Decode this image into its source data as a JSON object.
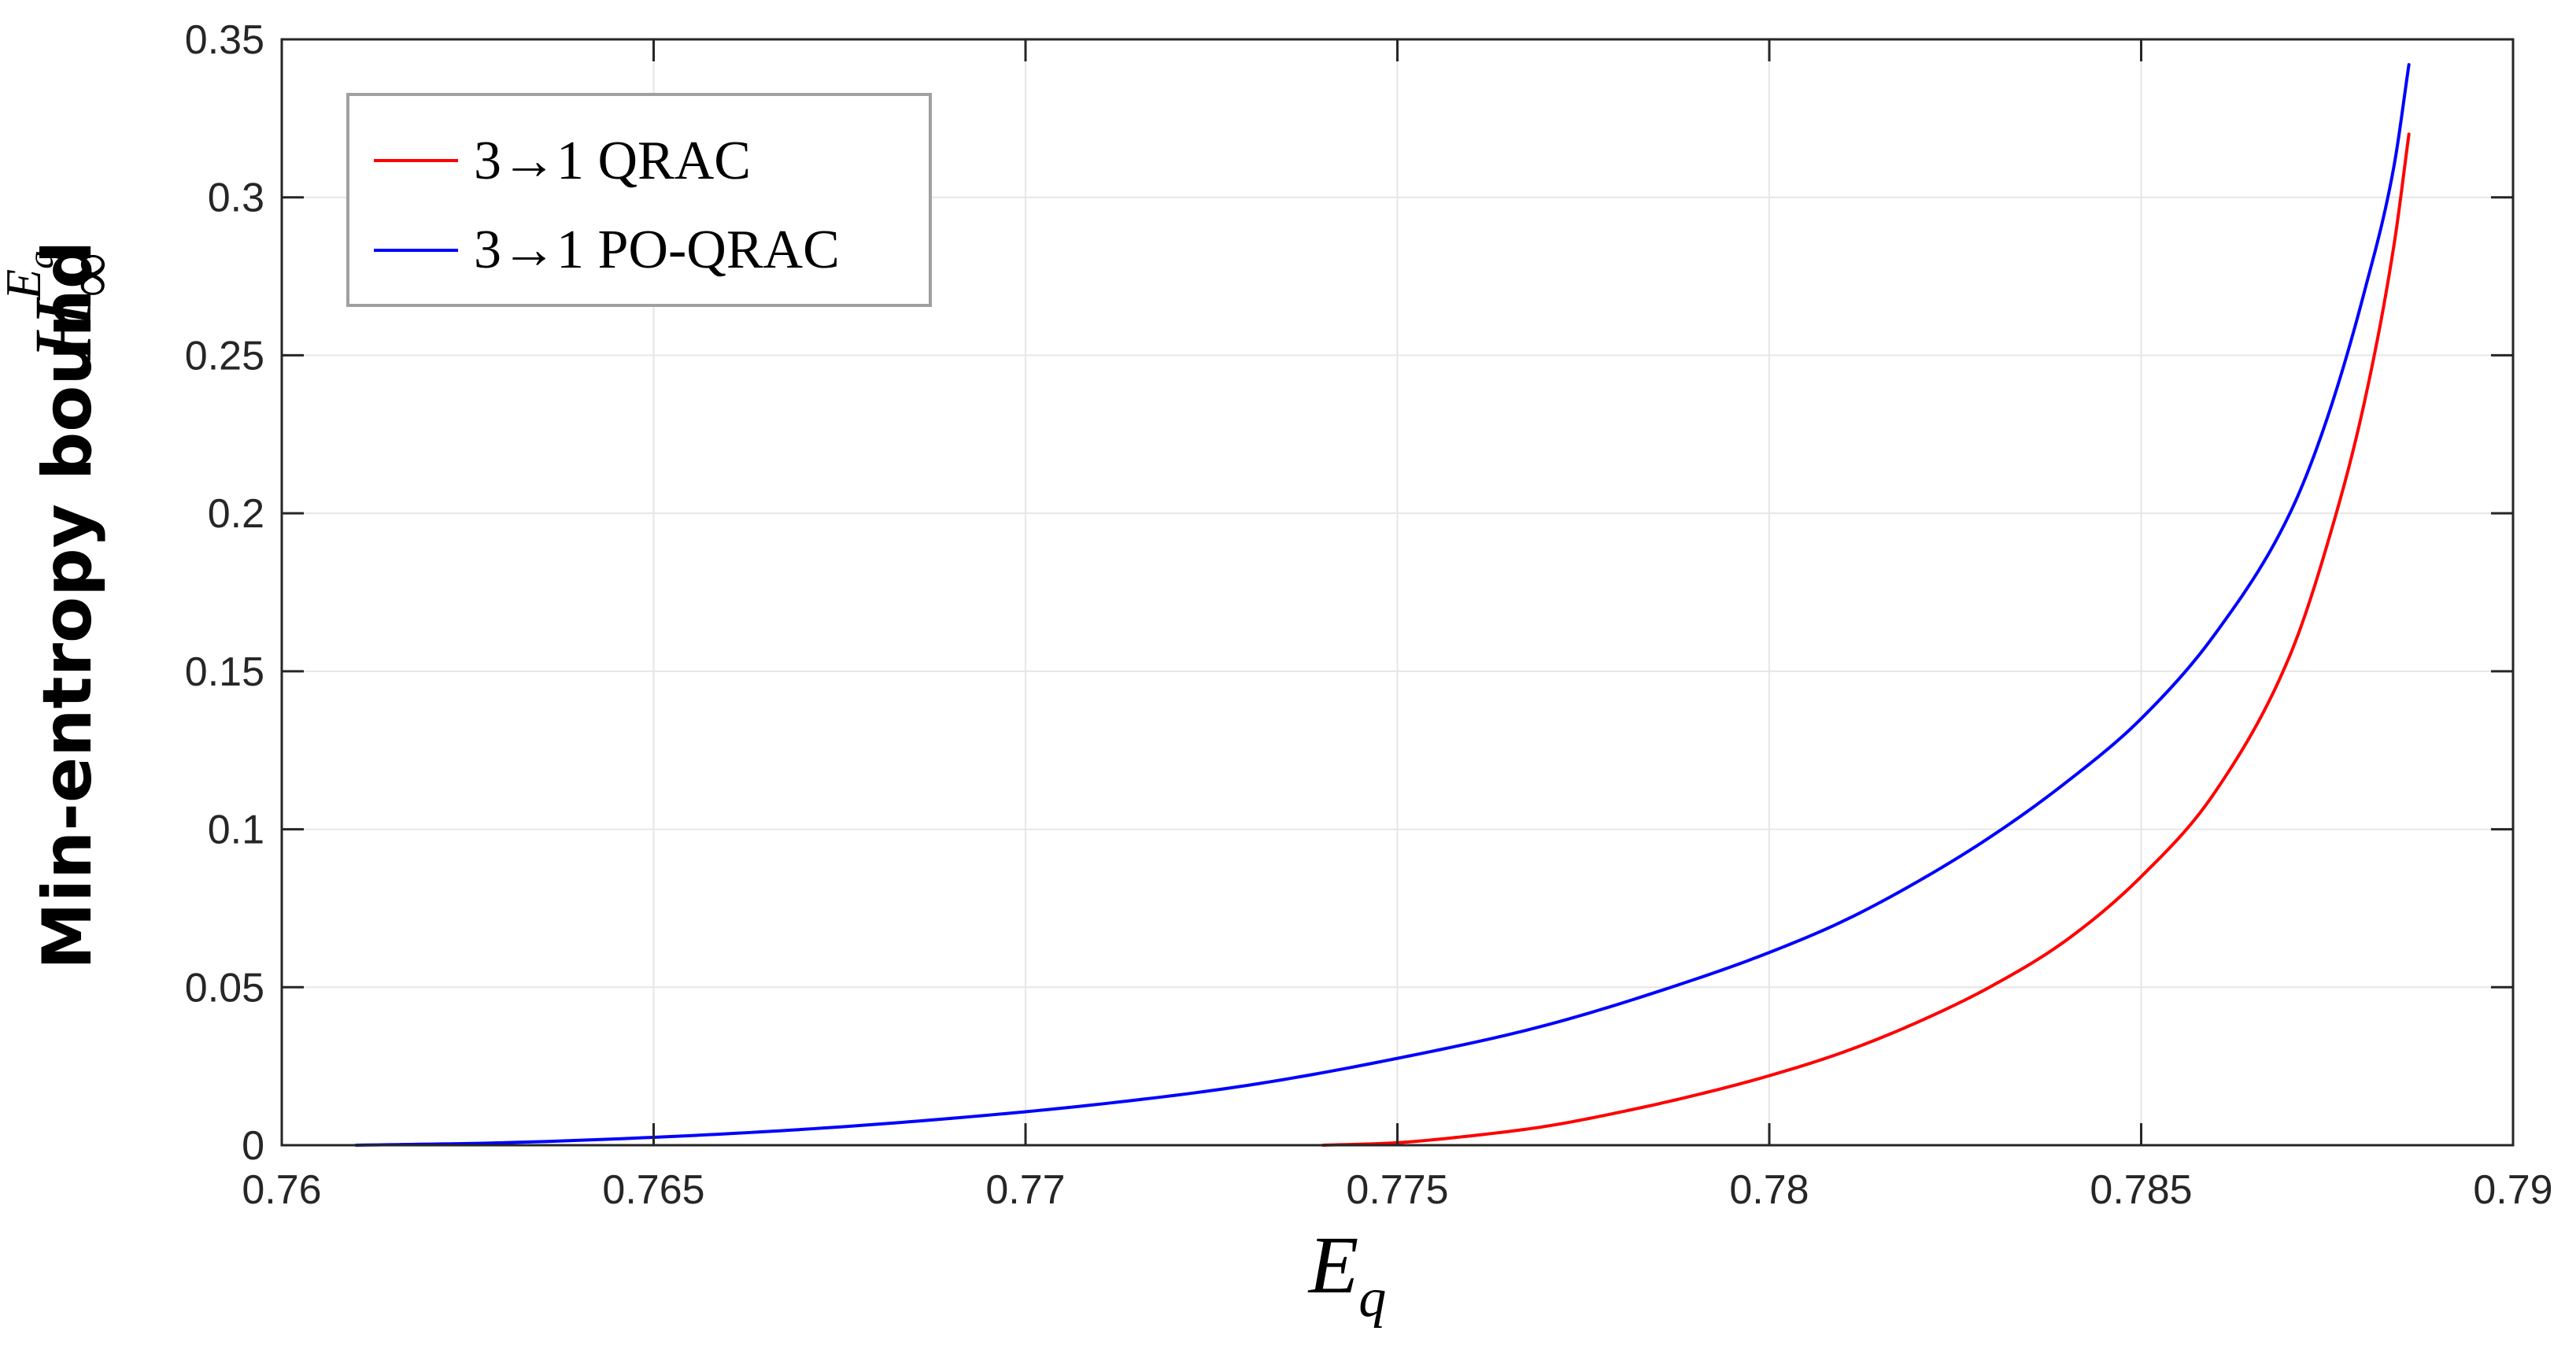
{
  "chart_data": {
    "type": "line",
    "title": "",
    "xlabel": "E",
    "xlabel_subscript": "q",
    "ylabel": "Min-entropy bound",
    "ylabel_math": {
      "base": "H",
      "subscript": "∞",
      "superscript": "E",
      "superscript_sub": "q"
    },
    "xlim": [
      0.76,
      0.79
    ],
    "ylim": [
      0,
      0.35
    ],
    "xticks": [
      0.76,
      0.765,
      0.77,
      0.775,
      0.78,
      0.785,
      0.79
    ],
    "xtick_labels": [
      "0.76",
      "0.765",
      "0.77",
      "0.775",
      "0.78",
      "0.785",
      "0.79"
    ],
    "yticks": [
      0,
      0.05,
      0.1,
      0.15,
      0.2,
      0.25,
      0.3,
      0.35
    ],
    "ytick_labels": [
      "0",
      "0.05",
      "0.1",
      "0.15",
      "0.2",
      "0.25",
      "0.3",
      "0.35"
    ],
    "grid": true,
    "legend_position": "top-left",
    "series": [
      {
        "name": "3→1 QRAC",
        "color": "#ff0000",
        "x": [
          0.774,
          0.775,
          0.776,
          0.777,
          0.778,
          0.779,
          0.78,
          0.781,
          0.782,
          0.783,
          0.784,
          0.785,
          0.786,
          0.787,
          0.7875,
          0.788,
          0.7884,
          0.7886
        ],
        "y": [
          0,
          0.0008,
          0.003,
          0.006,
          0.0105,
          0.0158,
          0.022,
          0.0295,
          0.039,
          0.0505,
          0.065,
          0.085,
          0.112,
          0.155,
          0.19,
          0.235,
          0.285,
          0.32
        ]
      },
      {
        "name": "3→1 PO-QRAC",
        "color": "#0000ff",
        "x": [
          0.761,
          0.763,
          0.765,
          0.767,
          0.769,
          0.771,
          0.773,
          0.775,
          0.777,
          0.779,
          0.78,
          0.781,
          0.782,
          0.783,
          0.784,
          0.785,
          0.786,
          0.787,
          0.7875,
          0.788,
          0.7884,
          0.7886
        ],
        "y": [
          0,
          0.0008,
          0.0025,
          0.005,
          0.0085,
          0.013,
          0.019,
          0.0275,
          0.038,
          0.0525,
          0.061,
          0.071,
          0.0835,
          0.098,
          0.115,
          0.135,
          0.162,
          0.2,
          0.23,
          0.27,
          0.31,
          0.342
        ]
      }
    ]
  }
}
